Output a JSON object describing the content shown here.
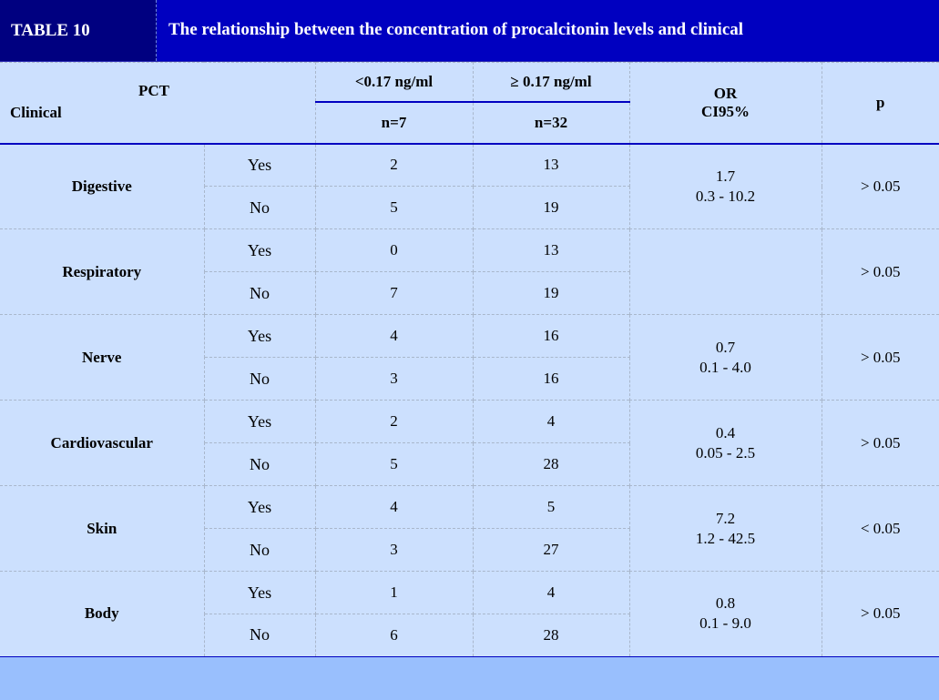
{
  "header": {
    "table_number": "TABLE 10",
    "title": "The relationship between the concentration of procalcitonin levels and clinical"
  },
  "columns": {
    "pct": "PCT",
    "clinical": "Clinical",
    "low": "<0.17 ng/ml",
    "high": "≥ 0.17 ng/ml",
    "low_n": "n=7",
    "high_n": "n=32",
    "or_line1": "OR",
    "or_line2": "CI95%",
    "p": "p"
  },
  "rows": [
    {
      "category": "Digestive",
      "yes_label": "Yes",
      "no_label": "No",
      "yes_low": "2",
      "yes_high": "13",
      "no_low": "5",
      "no_high": "19",
      "or_value": "1.7",
      "or_ci": "0.3 - 10.2",
      "p": "> 0.05"
    },
    {
      "category": "Respiratory",
      "yes_label": "Yes",
      "no_label": "No",
      "yes_low": "0",
      "yes_high": "13",
      "no_low": "7",
      "no_high": "19",
      "or_value": "",
      "or_ci": "",
      "p": "> 0.05"
    },
    {
      "category": "Nerve",
      "yes_label": "Yes",
      "no_label": "No",
      "yes_low": "4",
      "yes_high": "16",
      "no_low": "3",
      "no_high": "16",
      "or_value": "0.7",
      "or_ci": "0.1 - 4.0",
      "p": "> 0.05"
    },
    {
      "category": "Cardiovascular",
      "yes_label": "Yes",
      "no_label": "No",
      "yes_low": "2",
      "yes_high": "4",
      "no_low": "5",
      "no_high": "28",
      "or_value": "0.4",
      "or_ci": "0.05 - 2.5",
      "p": "> 0.05"
    },
    {
      "category": "Skin",
      "yes_label": "Yes",
      "no_label": "No",
      "yes_low": "4",
      "yes_high": "5",
      "no_low": "3",
      "no_high": "27",
      "or_value": "7.2",
      "or_ci": "1.2 - 42.5",
      "p": "< 0.05"
    },
    {
      "category": "Body",
      "yes_label": "Yes",
      "no_label": "No",
      "yes_low": "1",
      "yes_high": "4",
      "no_low": "6",
      "no_high": "28",
      "or_value": "0.8",
      "or_ci": "0.1 - 9.0",
      "p": "> 0.05"
    }
  ],
  "colors": {
    "title_bar": "#0000c0",
    "table_num_bg": "#000080",
    "table_bg": "#cce0fe",
    "footer_bg": "#99bffd",
    "rule": "#0000c0"
  }
}
